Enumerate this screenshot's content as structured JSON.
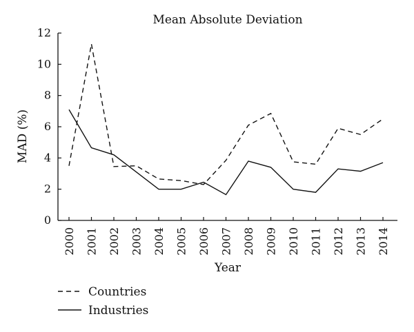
{
  "chart_data": {
    "type": "line",
    "title": "Mean Absolute Deviation",
    "xlabel": "Year",
    "ylabel": "MAD (%)",
    "ylim": [
      0,
      12
    ],
    "yticks": [
      "0",
      "2",
      "4",
      "6",
      "8",
      "10",
      "12"
    ],
    "categories": [
      "2000",
      "2001",
      "2002",
      "2003",
      "2004",
      "2005",
      "2006",
      "2007",
      "2008",
      "2009",
      "2010",
      "2011",
      "2012",
      "2013",
      "2014"
    ],
    "grid": false,
    "legend_position": "bottom-left",
    "series": [
      {
        "name": "Countries",
        "style": "dashed",
        "color": "#111111",
        "values": [
          3.5,
          11.3,
          3.45,
          3.5,
          2.65,
          2.55,
          2.3,
          3.85,
          6.1,
          6.85,
          3.75,
          3.6,
          5.9,
          5.5,
          6.5
        ]
      },
      {
        "name": "Industries",
        "style": "solid",
        "color": "#111111",
        "values": [
          7.1,
          4.65,
          4.2,
          3.1,
          2.0,
          2.0,
          2.45,
          1.65,
          3.8,
          3.4,
          2.0,
          1.8,
          3.3,
          3.15,
          3.7
        ]
      }
    ]
  }
}
